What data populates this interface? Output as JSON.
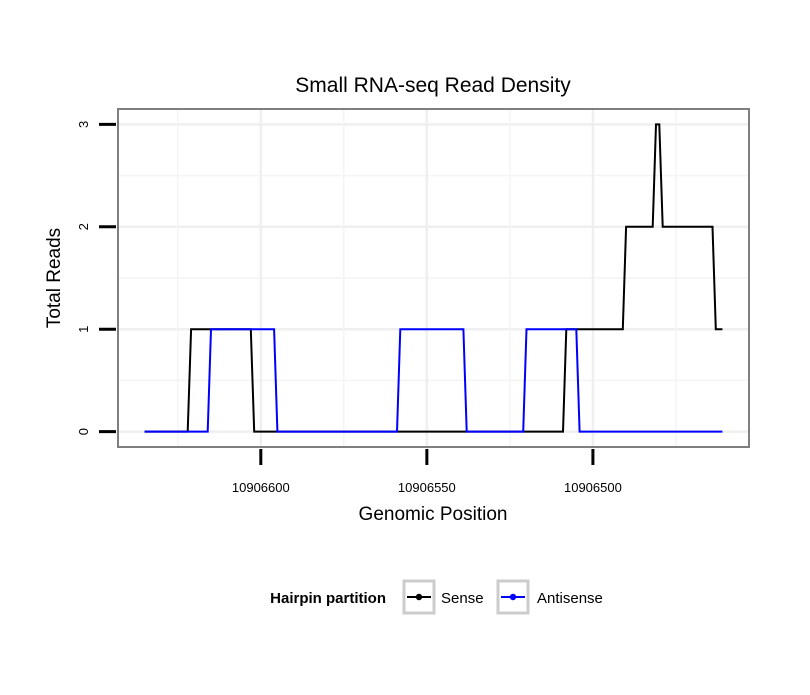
{
  "chart_data": {
    "type": "line",
    "title": "Small RNA-seq Read Density",
    "xlabel": "Genomic Position",
    "ylabel": "Total Reads",
    "xlim": [
      10906643,
      10906453
    ],
    "ylim": [
      -0.15,
      3.15
    ],
    "x_reversed": true,
    "grid": true,
    "x_ticks": [
      {
        "value": 10906600,
        "label": "10906600"
      },
      {
        "value": 10906550,
        "label": "10906550"
      },
      {
        "value": 10906500,
        "label": "10906500"
      }
    ],
    "y_ticks": [
      {
        "value": 0,
        "label": "0"
      },
      {
        "value": 1,
        "label": "1"
      },
      {
        "value": 2,
        "label": "2"
      },
      {
        "value": 3,
        "label": "3"
      }
    ],
    "series": [
      {
        "name": "Sense",
        "color": "#000000",
        "points": [
          [
            10906635,
            0
          ],
          [
            10906622,
            0
          ],
          [
            10906621,
            1
          ],
          [
            10906603,
            1
          ],
          [
            10906602,
            0
          ],
          [
            10906509,
            0
          ],
          [
            10906508,
            1
          ],
          [
            10906491,
            1
          ],
          [
            10906490,
            2
          ],
          [
            10906482,
            2
          ],
          [
            10906481,
            3
          ],
          [
            10906480,
            3
          ],
          [
            10906479,
            2
          ],
          [
            10906464,
            2
          ],
          [
            10906463,
            1
          ],
          [
            10906461,
            1
          ]
        ]
      },
      {
        "name": "Antisense",
        "color": "#0000ff",
        "points": [
          [
            10906635,
            0
          ],
          [
            10906616,
            0
          ],
          [
            10906615,
            1
          ],
          [
            10906596,
            1
          ],
          [
            10906595,
            0
          ],
          [
            10906559,
            0
          ],
          [
            10906558,
            1
          ],
          [
            10906539,
            1
          ],
          [
            10906538,
            0
          ],
          [
            10906521,
            0
          ],
          [
            10906520,
            1
          ],
          [
            10906505,
            1
          ],
          [
            10906504,
            0
          ],
          [
            10906461,
            0
          ]
        ]
      }
    ],
    "legend": {
      "title": "Hairpin partition",
      "position": "bottom",
      "entries": [
        "Sense",
        "Antisense"
      ]
    }
  }
}
